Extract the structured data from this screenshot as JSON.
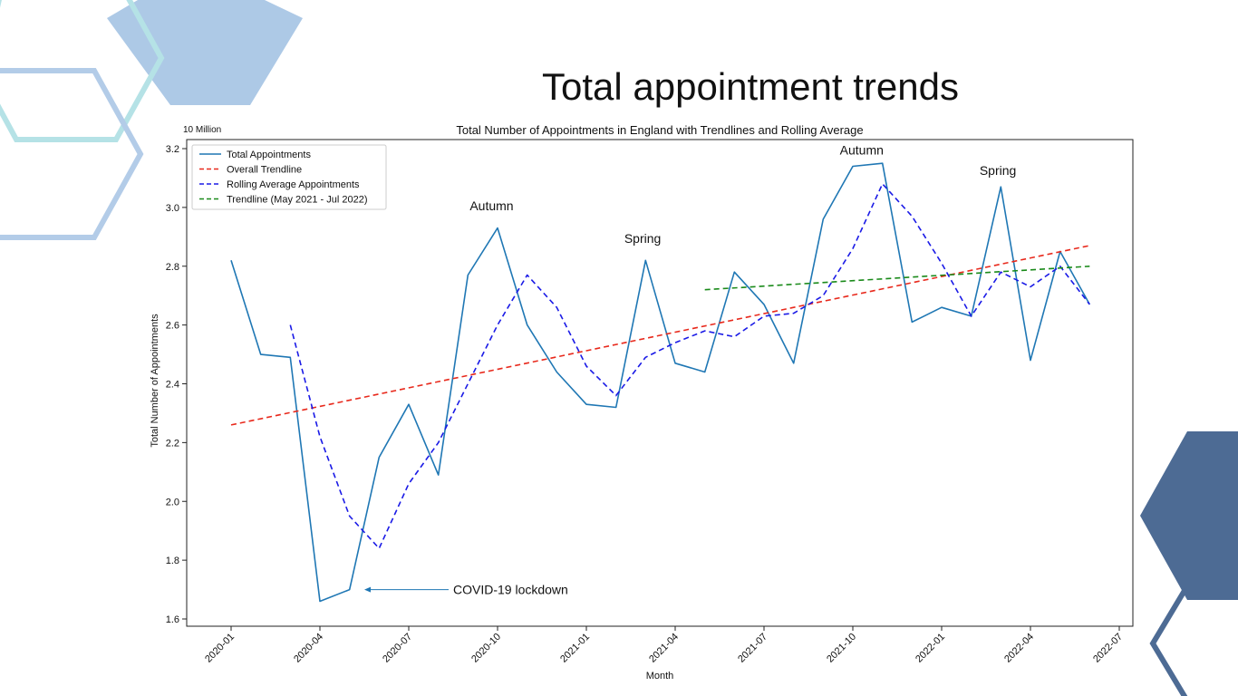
{
  "slide": {
    "title": "Total appointment trends"
  },
  "decor": {
    "hex_light_blue": "#adc9e6",
    "hex_outline_teal": "#b5e2e6",
    "hex_outline_blue": "#b3cce8",
    "hex_dark_blue": "#4d6b94"
  },
  "chart_data": {
    "type": "line",
    "title": "Total Number of Appointments in England with Trendlines and Rolling Average",
    "xlabel": "Month",
    "ylabel": "Total Number of Appointments",
    "y_scale_label": "10 Million",
    "ylim": [
      1.6,
      3.2
    ],
    "yticks": [
      "1.6",
      "1.8",
      "2.0",
      "2.2",
      "2.4",
      "2.6",
      "2.8",
      "3.0",
      "3.2"
    ],
    "xticks": [
      "2020-01",
      "2020-04",
      "2020-07",
      "2020-10",
      "2021-01",
      "2021-04",
      "2021-07",
      "2021-10",
      "2022-01",
      "2022-04",
      "2022-07"
    ],
    "grid": false,
    "legend_position": "upper left",
    "series": [
      {
        "name": "Total Appointments",
        "style": "solid",
        "color": "#1f77b4",
        "x": [
          "2020-01",
          "2020-02",
          "2020-03",
          "2020-04",
          "2020-05",
          "2020-06",
          "2020-07",
          "2020-08",
          "2020-09",
          "2020-10",
          "2020-11",
          "2020-12",
          "2021-01",
          "2021-02",
          "2021-03",
          "2021-04",
          "2021-05",
          "2021-06",
          "2021-07",
          "2021-08",
          "2021-09",
          "2021-10",
          "2021-11",
          "2021-12",
          "2022-01",
          "2022-02",
          "2022-03",
          "2022-04",
          "2022-05",
          "2022-06"
        ],
        "values": [
          2.82,
          2.5,
          2.49,
          1.66,
          1.7,
          2.15,
          2.33,
          2.09,
          2.77,
          2.93,
          2.6,
          2.44,
          2.33,
          2.32,
          2.82,
          2.47,
          2.44,
          2.78,
          2.67,
          2.47,
          2.96,
          3.14,
          3.15,
          2.61,
          2.66,
          2.63,
          3.07,
          2.48,
          2.85,
          2.67
        ]
      },
      {
        "name": "Overall Trendline",
        "style": "dashed",
        "color": "#e8291c",
        "x": [
          "2020-01",
          "2022-06"
        ],
        "values": [
          2.26,
          2.87
        ]
      },
      {
        "name": "Rolling Average Appointments",
        "style": "dashed",
        "color": "#1a1ae6",
        "x": [
          "2020-03",
          "2020-04",
          "2020-05",
          "2020-06",
          "2020-07",
          "2020-08",
          "2020-09",
          "2020-10",
          "2020-11",
          "2020-12",
          "2021-01",
          "2021-02",
          "2021-03",
          "2021-04",
          "2021-05",
          "2021-06",
          "2021-07",
          "2021-08",
          "2021-09",
          "2021-10",
          "2021-11",
          "2021-12",
          "2022-01",
          "2022-02",
          "2022-03",
          "2022-04",
          "2022-05",
          "2022-06"
        ],
        "values": [
          2.6,
          2.22,
          1.95,
          1.84,
          2.06,
          2.2,
          2.4,
          2.6,
          2.77,
          2.66,
          2.46,
          2.36,
          2.49,
          2.54,
          2.58,
          2.56,
          2.63,
          2.64,
          2.7,
          2.86,
          3.08,
          2.97,
          2.81,
          2.63,
          2.78,
          2.73,
          2.8,
          2.67
        ]
      },
      {
        "name": "Trendline (May 2021 - Jul 2022)",
        "style": "dashed",
        "color": "#1a8a1a",
        "x": [
          "2021-05",
          "2022-06"
        ],
        "values": [
          2.72,
          2.8
        ]
      }
    ],
    "annotations": [
      {
        "text": "Autumn",
        "x": "2020-09.8",
        "y": 2.99
      },
      {
        "text": "Spring",
        "x": "2021-02.9",
        "y": 2.88
      },
      {
        "text": "Autumn",
        "x": "2021-10.3",
        "y": 3.18
      },
      {
        "text": "Spring",
        "x": "2022-02.9",
        "y": 3.11
      },
      {
        "text": "COVID-19 lockdown",
        "x": "2020-08.5",
        "y": 1.7,
        "arrow_to": {
          "x": "2020-05.5",
          "y": 1.7
        }
      }
    ]
  }
}
